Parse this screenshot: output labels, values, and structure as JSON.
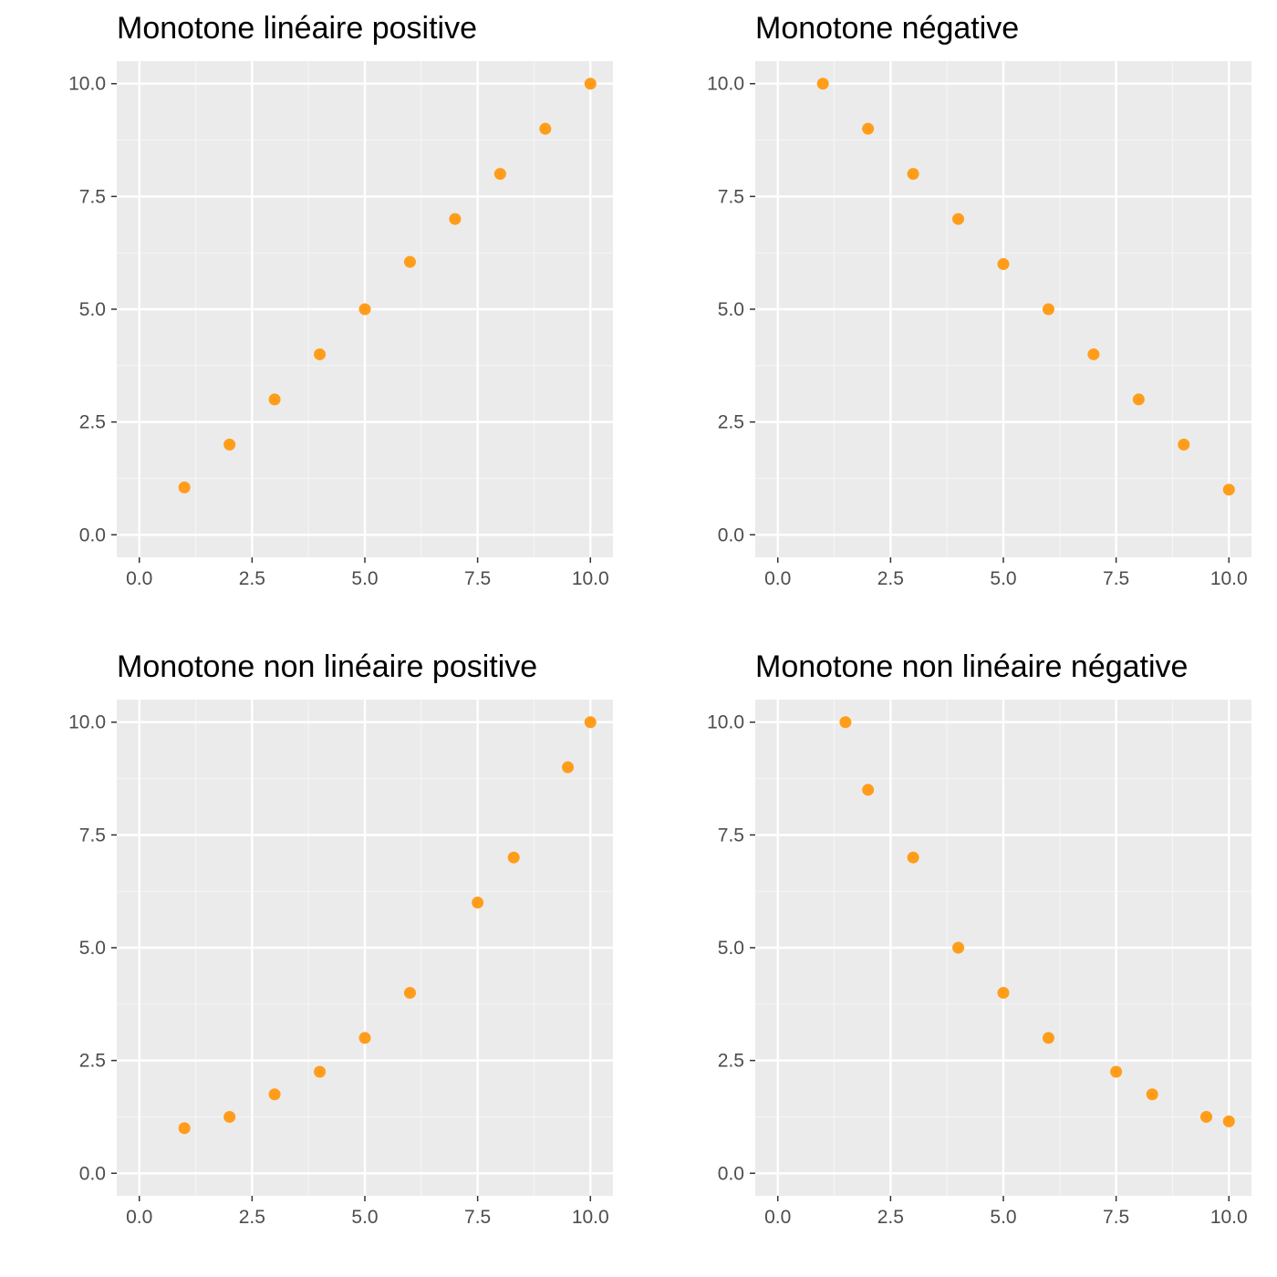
{
  "style": {
    "panel_background": "#ebebeb",
    "grid_major": "#ffffff",
    "grid_minor": "#f5f5f5",
    "point_color": "#ff9d1a",
    "tick_color": "#333333",
    "tick_label_color": "#4d4d4d"
  },
  "chart_data": [
    {
      "type": "scatter",
      "title": "Monotone linéaire positive",
      "xlim": [
        -0.5,
        10.5
      ],
      "ylim": [
        -0.5,
        10.5
      ],
      "xticks": [
        "0.0",
        "2.5",
        "5.0",
        "7.5",
        "10.0"
      ],
      "yticks": [
        "0.0",
        "2.5",
        "5.0",
        "7.5",
        "10.0"
      ],
      "grid": true,
      "x": [
        1,
        2,
        3,
        4,
        5,
        6,
        7,
        8,
        9,
        10
      ],
      "y": [
        1.05,
        2.0,
        3.0,
        4.0,
        5.0,
        6.05,
        7.0,
        8.0,
        9.0,
        10.0
      ]
    },
    {
      "type": "scatter",
      "title": "Monotone négative",
      "xlim": [
        -0.5,
        10.5
      ],
      "ylim": [
        -0.5,
        10.5
      ],
      "xticks": [
        "0.0",
        "2.5",
        "5.0",
        "7.5",
        "10.0"
      ],
      "yticks": [
        "0.0",
        "2.5",
        "5.0",
        "7.5",
        "10.0"
      ],
      "grid": true,
      "x": [
        1,
        2,
        3,
        4,
        5,
        6,
        7,
        8,
        9,
        10
      ],
      "y": [
        10,
        9,
        8,
        7,
        6,
        5,
        4,
        3,
        2,
        1
      ]
    },
    {
      "type": "scatter",
      "title": "Monotone non linéaire positive",
      "xlim": [
        -0.5,
        10.5
      ],
      "ylim": [
        -0.5,
        10.5
      ],
      "xticks": [
        "0.0",
        "2.5",
        "5.0",
        "7.5",
        "10.0"
      ],
      "yticks": [
        "0.0",
        "2.5",
        "5.0",
        "7.5",
        "10.0"
      ],
      "grid": true,
      "x": [
        1,
        2,
        3,
        4,
        5,
        6,
        7.5,
        8.3,
        9.5,
        10
      ],
      "y": [
        1.0,
        1.25,
        1.75,
        2.25,
        3.0,
        4.0,
        6.0,
        7.0,
        9.0,
        10.0
      ]
    },
    {
      "type": "scatter",
      "title": "Monotone non linéaire négative",
      "xlim": [
        -0.5,
        10.5
      ],
      "ylim": [
        -0.5,
        10.5
      ],
      "xticks": [
        "0.0",
        "2.5",
        "5.0",
        "7.5",
        "10.0"
      ],
      "yticks": [
        "0.0",
        "2.5",
        "5.0",
        "7.5",
        "10.0"
      ],
      "grid": true,
      "x": [
        1.5,
        2,
        3,
        4,
        5,
        6,
        7.5,
        8.3,
        9.5,
        10
      ],
      "y": [
        10.0,
        8.5,
        7.0,
        5.0,
        4.0,
        3.0,
        2.25,
        1.75,
        1.25,
        1.15
      ]
    }
  ]
}
